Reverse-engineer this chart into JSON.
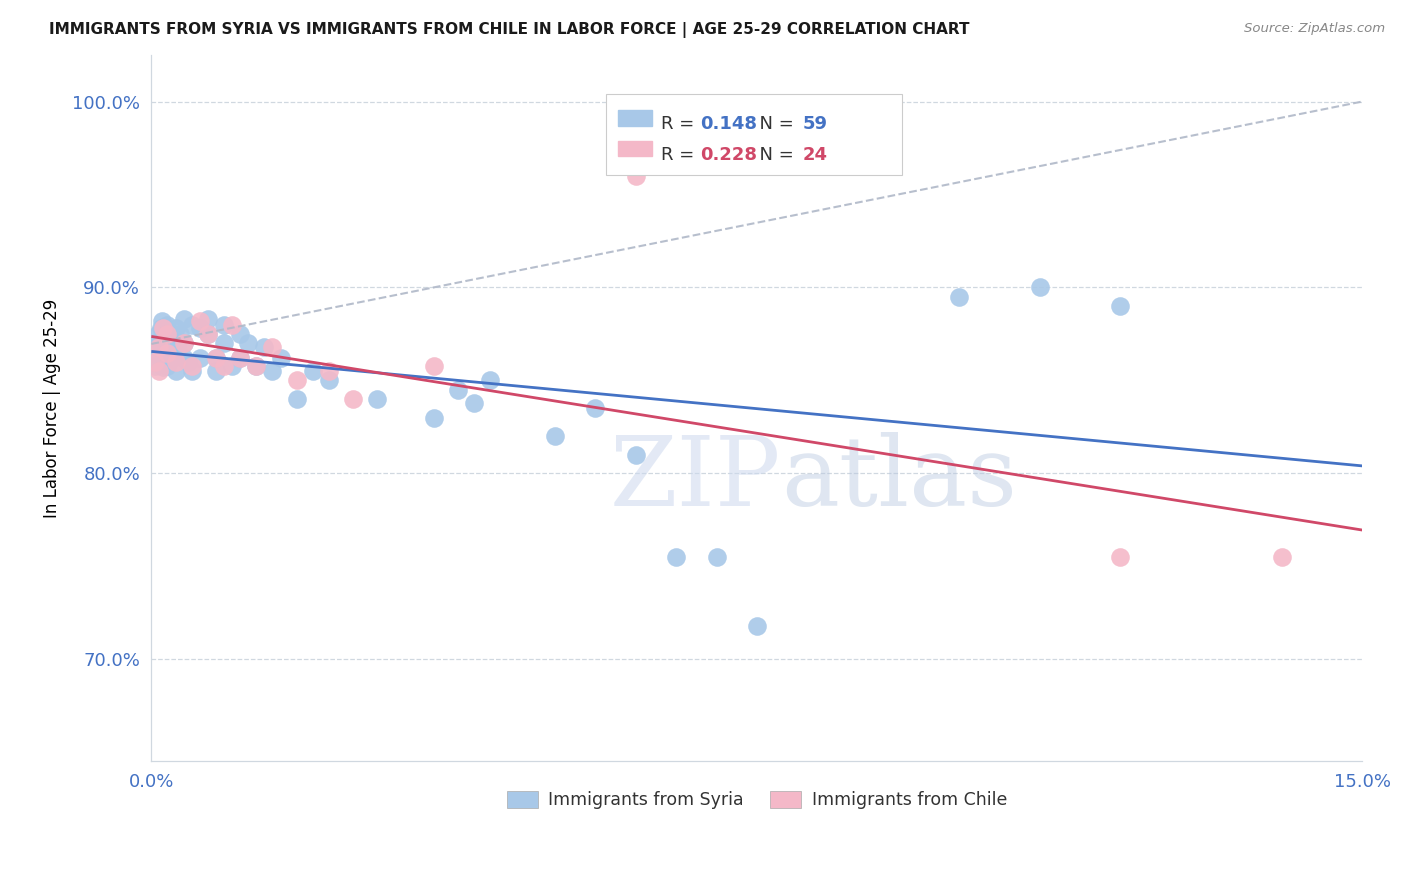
{
  "title": "IMMIGRANTS FROM SYRIA VS IMMIGRANTS FROM CHILE IN LABOR FORCE | AGE 25-29 CORRELATION CHART",
  "source": "Source: ZipAtlas.com",
  "ylabel": "In Labor Force | Age 25-29",
  "xlim": [
    0.0,
    0.15
  ],
  "ylim": [
    0.645,
    1.025
  ],
  "yticks": [
    0.7,
    0.8,
    0.9,
    1.0
  ],
  "yticklabels": [
    "70.0%",
    "80.0%",
    "90.0%",
    "100.0%"
  ],
  "xticks": [
    0.0,
    0.05,
    0.1,
    0.15
  ],
  "xticklabels": [
    "0.0%",
    "",
    "",
    "15.0%"
  ],
  "syria_R": 0.148,
  "syria_N": 59,
  "chile_R": 0.228,
  "chile_N": 24,
  "syria_color": "#a8c8e8",
  "chile_color": "#f4b8c8",
  "syria_line_color": "#4472c4",
  "chile_line_color": "#d04868",
  "dashed_line_color": "#b0b8c8",
  "syria_x": [
    0.0005,
    0.0007,
    0.0008,
    0.001,
    0.001,
    0.0012,
    0.0013,
    0.0015,
    0.0015,
    0.0018,
    0.002,
    0.002,
    0.002,
    0.0022,
    0.0025,
    0.0025,
    0.003,
    0.003,
    0.0032,
    0.0035,
    0.004,
    0.004,
    0.004,
    0.0045,
    0.005,
    0.005,
    0.006,
    0.006,
    0.007,
    0.007,
    0.008,
    0.008,
    0.009,
    0.009,
    0.01,
    0.011,
    0.011,
    0.012,
    0.013,
    0.014,
    0.015,
    0.016,
    0.018,
    0.02,
    0.022,
    0.028,
    0.035,
    0.038,
    0.04,
    0.042,
    0.05,
    0.055,
    0.06,
    0.065,
    0.07,
    0.075,
    0.1,
    0.11,
    0.12
  ],
  "syria_y": [
    0.858,
    0.868,
    0.875,
    0.863,
    0.871,
    0.878,
    0.882,
    0.87,
    0.857,
    0.865,
    0.872,
    0.88,
    0.858,
    0.875,
    0.862,
    0.868,
    0.878,
    0.855,
    0.869,
    0.875,
    0.883,
    0.862,
    0.87,
    0.86,
    0.88,
    0.855,
    0.878,
    0.862,
    0.883,
    0.875,
    0.855,
    0.862,
    0.87,
    0.88,
    0.858,
    0.875,
    0.862,
    0.87,
    0.858,
    0.868,
    0.855,
    0.862,
    0.84,
    0.855,
    0.85,
    0.84,
    0.83,
    0.845,
    0.838,
    0.85,
    0.82,
    0.835,
    0.81,
    0.755,
    0.755,
    0.718,
    0.895,
    0.9,
    0.89
  ],
  "chile_x": [
    0.0005,
    0.001,
    0.001,
    0.0015,
    0.002,
    0.002,
    0.003,
    0.004,
    0.005,
    0.006,
    0.007,
    0.008,
    0.009,
    0.01,
    0.011,
    0.013,
    0.015,
    0.018,
    0.022,
    0.025,
    0.035,
    0.06,
    0.12,
    0.14
  ],
  "chile_y": [
    0.86,
    0.868,
    0.855,
    0.878,
    0.865,
    0.875,
    0.86,
    0.87,
    0.858,
    0.882,
    0.875,
    0.862,
    0.858,
    0.88,
    0.862,
    0.858,
    0.868,
    0.85,
    0.855,
    0.84,
    0.858,
    0.96,
    0.755,
    0.755
  ],
  "watermark_zip": "ZIP",
  "watermark_atlas": "atlas",
  "background_color": "#ffffff",
  "tick_color": "#4472c4",
  "grid_color": "#d0d8e0",
  "legend_box_color": "#f0f4ff"
}
